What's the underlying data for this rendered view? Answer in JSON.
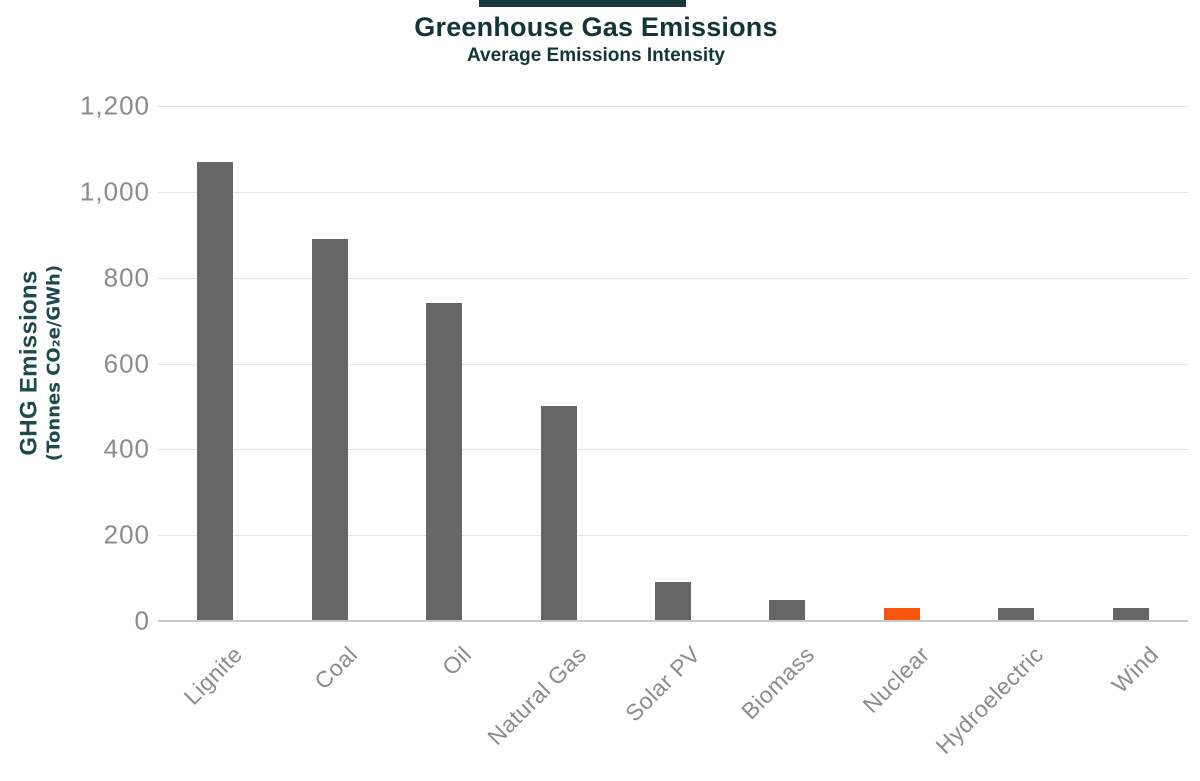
{
  "header": {
    "title": "Greenhouse Gas Emissions",
    "subtitle": "Average Emissions Intensity"
  },
  "chart_data": {
    "type": "bar",
    "title": "Greenhouse Gas Emissions",
    "subtitle": "Average Emissions Intensity",
    "categories": [
      "Lignite",
      "Coal",
      "Oil",
      "Natural Gas",
      "Solar PV",
      "Biomass",
      "Nuclear",
      "Hydroelectric",
      "Wind"
    ],
    "values": [
      1070,
      890,
      740,
      500,
      90,
      50,
      30,
      30,
      30
    ],
    "xlabel": "",
    "ylabel_line1": "GHG Emissions",
    "ylabel_line2": "(Tonnes CO₂e/GWh)",
    "ylim": [
      0,
      1200
    ],
    "ytick_interval": 200,
    "ytick_labels": [
      "1,200",
      "1,000",
      "800",
      "600",
      "400",
      "200",
      "0"
    ],
    "grid": "horizontal-only",
    "legend": "none",
    "x_label_rotation_deg": 45,
    "highlight_category": "Nuclear",
    "highlight_index": 6,
    "colors": {
      "bar_default": "#666666",
      "bar_highlight": "#fa550a",
      "gridline": "#e3e3e3",
      "axis_line": "#c9c9c9",
      "tick_text": "#8b8b8b",
      "title_text": "#123638",
      "axis_title_text": "#1c4a4d",
      "top_strip": "#19383a"
    }
  }
}
